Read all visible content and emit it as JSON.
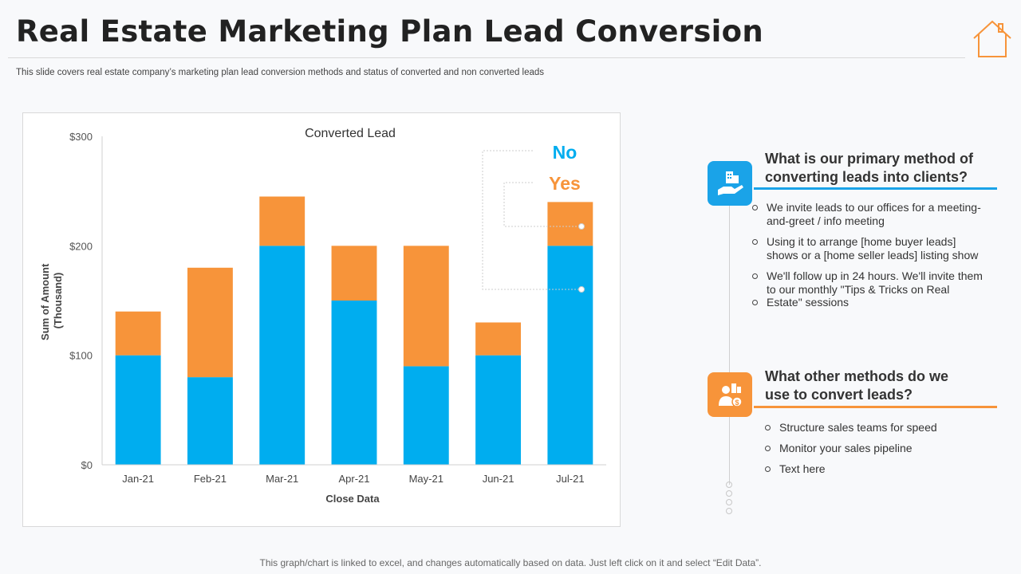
{
  "page": {
    "title": "Real Estate Marketing Plan Lead Conversion",
    "subtitle": "This slide covers real estate company’s marketing plan lead conversion methods and status of converted and non converted leads",
    "footer": "This graph/chart is linked to excel, and changes automatically based on data. Just left click on it and select “Edit Data”."
  },
  "colors": {
    "no": "#00adef",
    "yes": "#f7943a",
    "accent_blue": "#1aa3e8",
    "accent_orange": "#f7943a"
  },
  "chart_data": {
    "type": "bar",
    "stacked": true,
    "title": "Converted Lead",
    "xlabel": "Close Data",
    "ylabel": "Sum of Amount (Thousand)",
    "ylabel_lines": [
      "Sum of Amount",
      "(Thousand)"
    ],
    "ylim": [
      0,
      300
    ],
    "yticks": [
      0,
      100,
      200,
      300
    ],
    "ytick_labels": [
      "$0",
      "$100",
      "$200",
      "$300"
    ],
    "categories": [
      "Jan-21",
      "Feb-21",
      "Mar-21",
      "Apr-21",
      "May-21",
      "Jun-21",
      "Jul-21"
    ],
    "series": [
      {
        "name": "No",
        "values": [
          100,
          80,
          200,
          150,
          90,
          100,
          200
        ]
      },
      {
        "name": "Yes",
        "values": [
          40,
          100,
          45,
          50,
          110,
          30,
          40
        ]
      }
    ],
    "legend": {
      "placement": "right",
      "entries": [
        "No",
        "Yes"
      ]
    }
  },
  "panels": [
    {
      "icon": "real-estate-hand-icon",
      "title_lines": [
        "What is our primary method of",
        "converting leads into clients?"
      ],
      "bullets": [
        "We invite leads to our offices for a meeting-and-greet / info meeting",
        "Using it to arrange [home buyer leads] shows or a [home seller leads] listing show",
        "We'll follow up in 24 hours. We'll invite them to our monthly \"Tips & Tricks on Real",
        "Estate\" sessions"
      ]
    },
    {
      "icon": "agent-money-icon",
      "title_lines": [
        "What other methods do we",
        "use to convert leads?"
      ],
      "bullets": [
        "Structure sales teams for speed",
        "Monitor your sales pipeline",
        "Text here"
      ]
    }
  ]
}
